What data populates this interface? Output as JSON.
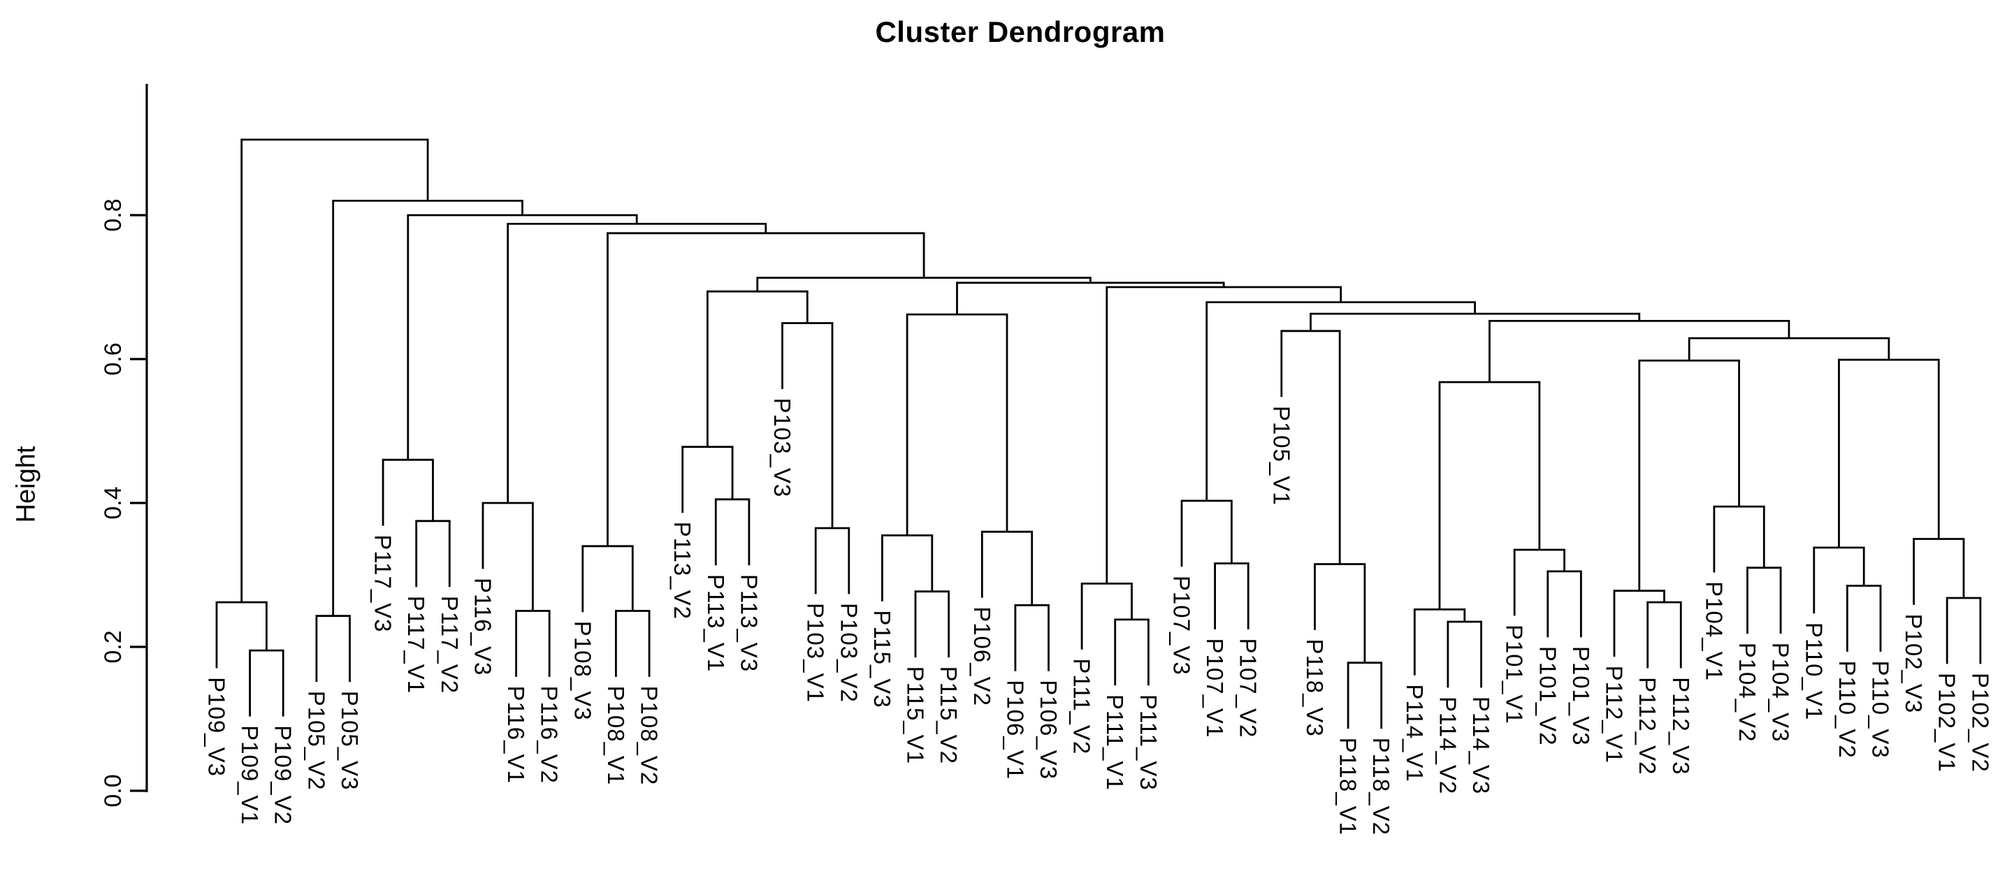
{
  "page": {
    "background": "#ffffff"
  },
  "chart_data": {
    "type": "dendrogram",
    "title": "Cluster Dendrogram",
    "xlabel": "",
    "ylabel": "Height",
    "grid": false,
    "line_color": "#000000",
    "text_color": "#000000",
    "y_axis": {
      "min": 0.0,
      "max": 0.9,
      "tick_values": [
        0.0,
        0.2,
        0.4,
        0.6,
        0.8
      ],
      "tick_labels": [
        "0.0",
        "0.2",
        "0.4",
        "0.6",
        "0.8"
      ]
    },
    "leaf_order": [
      "P109_V3",
      "P109_V1",
      "P109_V2",
      "P105_V2",
      "P105_V3",
      "P117_V3",
      "P117_V1",
      "P117_V2",
      "P116_V3",
      "P116_V1",
      "P116_V2",
      "P108_V3",
      "P108_V1",
      "P108_V2",
      "P113_V2",
      "P113_V1",
      "P113_V3",
      "P103_V3",
      "P103_V1",
      "P103_V2",
      "P115_V3",
      "P115_V1",
      "P115_V2",
      "P106_V2",
      "P106_V1",
      "P106_V3",
      "P111_V2",
      "P111_V1",
      "P111_V3",
      "P107_V3",
      "P107_V1",
      "P107_V2",
      "P105_V1",
      "P118_V3",
      "P118_V1",
      "P118_V2",
      "P114_V1",
      "P114_V2",
      "P114_V3",
      "P101_V1",
      "P101_V2",
      "P101_V3",
      "P112_V1",
      "P112_V2",
      "P112_V3",
      "P104_V1",
      "P104_V2",
      "P104_V3",
      "P110_V1",
      "P110_V2",
      "P110_V3",
      "P102_V3",
      "P102_V1",
      "P102_V2"
    ],
    "tree": {
      "h": 0.905,
      "c": [
        {
          "h": 0.262,
          "c": [
            "P109_V3",
            {
              "h": 0.195,
              "c": [
                "P109_V1",
                "P109_V2"
              ]
            }
          ]
        },
        {
          "h": 0.82,
          "c": [
            {
              "h": 0.243,
              "c": [
                "P105_V2",
                "P105_V3"
              ]
            },
            {
              "h": 0.8,
              "c": [
                {
                  "h": 0.46,
                  "c": [
                    "P117_V3",
                    {
                      "h": 0.375,
                      "c": [
                        "P117_V1",
                        "P117_V2"
                      ]
                    }
                  ]
                },
                {
                  "h": 0.788,
                  "c": [
                    {
                      "h": 0.4,
                      "c": [
                        "P116_V3",
                        {
                          "h": 0.25,
                          "c": [
                            "P116_V1",
                            "P116_V2"
                          ]
                        }
                      ]
                    },
                    {
                      "h": 0.775,
                      "c": [
                        {
                          "h": 0.34,
                          "c": [
                            "P108_V3",
                            {
                              "h": 0.25,
                              "c": [
                                "P108_V1",
                                "P108_V2"
                              ]
                            }
                          ]
                        },
                        {
                          "h": 0.713,
                          "c": [
                            {
                              "h": 0.694,
                              "c": [
                                {
                                  "h": 0.478,
                                  "c": [
                                    "P113_V2",
                                    {
                                      "h": 0.405,
                                      "c": [
                                        "P113_V1",
                                        "P113_V3"
                                      ]
                                    }
                                  ]
                                },
                                {
                                  "h": 0.65,
                                  "c": [
                                    "P103_V3",
                                    {
                                      "h": 0.365,
                                      "c": [
                                        "P103_V1",
                                        "P103_V2"
                                      ]
                                    }
                                  ]
                                }
                              ]
                            },
                            {
                              "h": 0.706,
                              "c": [
                                {
                                  "h": 0.662,
                                  "c": [
                                    {
                                      "h": 0.355,
                                      "c": [
                                        "P115_V3",
                                        {
                                          "h": 0.277,
                                          "c": [
                                            "P115_V1",
                                            "P115_V2"
                                          ]
                                        }
                                      ]
                                    },
                                    {
                                      "h": 0.36,
                                      "c": [
                                        "P106_V2",
                                        {
                                          "h": 0.258,
                                          "c": [
                                            "P106_V1",
                                            "P106_V3"
                                          ]
                                        }
                                      ]
                                    }
                                  ]
                                },
                                {
                                  "h": 0.7,
                                  "c": [
                                    {
                                      "h": 0.288,
                                      "c": [
                                        "P111_V2",
                                        {
                                          "h": 0.238,
                                          "c": [
                                            "P111_V1",
                                            "P111_V3"
                                          ]
                                        }
                                      ]
                                    },
                                    {
                                      "h": 0.679,
                                      "c": [
                                        {
                                          "h": 0.403,
                                          "c": [
                                            "P107_V3",
                                            {
                                              "h": 0.316,
                                              "c": [
                                                "P107_V1",
                                                "P107_V2"
                                              ]
                                            }
                                          ]
                                        },
                                        {
                                          "h": 0.663,
                                          "c": [
                                            {
                                              "h": 0.639,
                                              "c": [
                                                "P105_V1",
                                                {
                                                  "h": 0.315,
                                                  "c": [
                                                    "P118_V3",
                                                    {
                                                      "h": 0.178,
                                                      "c": [
                                                        "P118_V1",
                                                        "P118_V2"
                                                      ]
                                                    }
                                                  ]
                                                }
                                              ]
                                            },
                                            {
                                              "h": 0.653,
                                              "c": [
                                                {
                                                  "h": 0.568,
                                                  "c": [
                                                    {
                                                      "h": 0.252,
                                                      "c": [
                                                        "P114_V1",
                                                        {
                                                          "h": 0.235,
                                                          "c": [
                                                            "P114_V2",
                                                            "P114_V3"
                                                          ]
                                                        }
                                                      ]
                                                    },
                                                    {
                                                      "h": 0.335,
                                                      "c": [
                                                        "P101_V1",
                                                        {
                                                          "h": 0.305,
                                                          "c": [
                                                            "P101_V2",
                                                            "P101_V3"
                                                          ]
                                                        }
                                                      ]
                                                    }
                                                  ]
                                                },
                                                {
                                                  "h": 0.629,
                                                  "c": [
                                                    {
                                                      "h": 0.598,
                                                      "c": [
                                                        {
                                                          "h": 0.278,
                                                          "c": [
                                                            "P112_V1",
                                                            {
                                                              "h": 0.262,
                                                              "c": [
                                                                "P112_V2",
                                                                "P112_V3"
                                                              ]
                                                            }
                                                          ]
                                                        },
                                                        {
                                                          "h": 0.395,
                                                          "c": [
                                                            "P104_V1",
                                                            {
                                                              "h": 0.31,
                                                              "c": [
                                                                "P104_V2",
                                                                "P104_V3"
                                                              ]
                                                            }
                                                          ]
                                                        }
                                                      ]
                                                    },
                                                    {
                                                      "h": 0.599,
                                                      "c": [
                                                        {
                                                          "h": 0.338,
                                                          "c": [
                                                            "P110_V1",
                                                            {
                                                              "h": 0.285,
                                                              "c": [
                                                                "P110_V2",
                                                                "P110_V3"
                                                              ]
                                                            }
                                                          ]
                                                        },
                                                        {
                                                          "h": 0.35,
                                                          "c": [
                                                            "P102_V3",
                                                            {
                                                              "h": 0.268,
                                                              "c": [
                                                                "P102_V1",
                                                                "P102_V2"
                                                              ]
                                                            }
                                                          ]
                                                        }
                                                      ]
                                                    }
                                                  ]
                                                }
                                              ]
                                            }
                                          ]
                                        }
                                      ]
                                    }
                                  ]
                                }
                              ]
                            }
                          ]
                        }
                      ]
                    }
                  ]
                }
              ]
            }
          ]
        }
      ]
    }
  }
}
